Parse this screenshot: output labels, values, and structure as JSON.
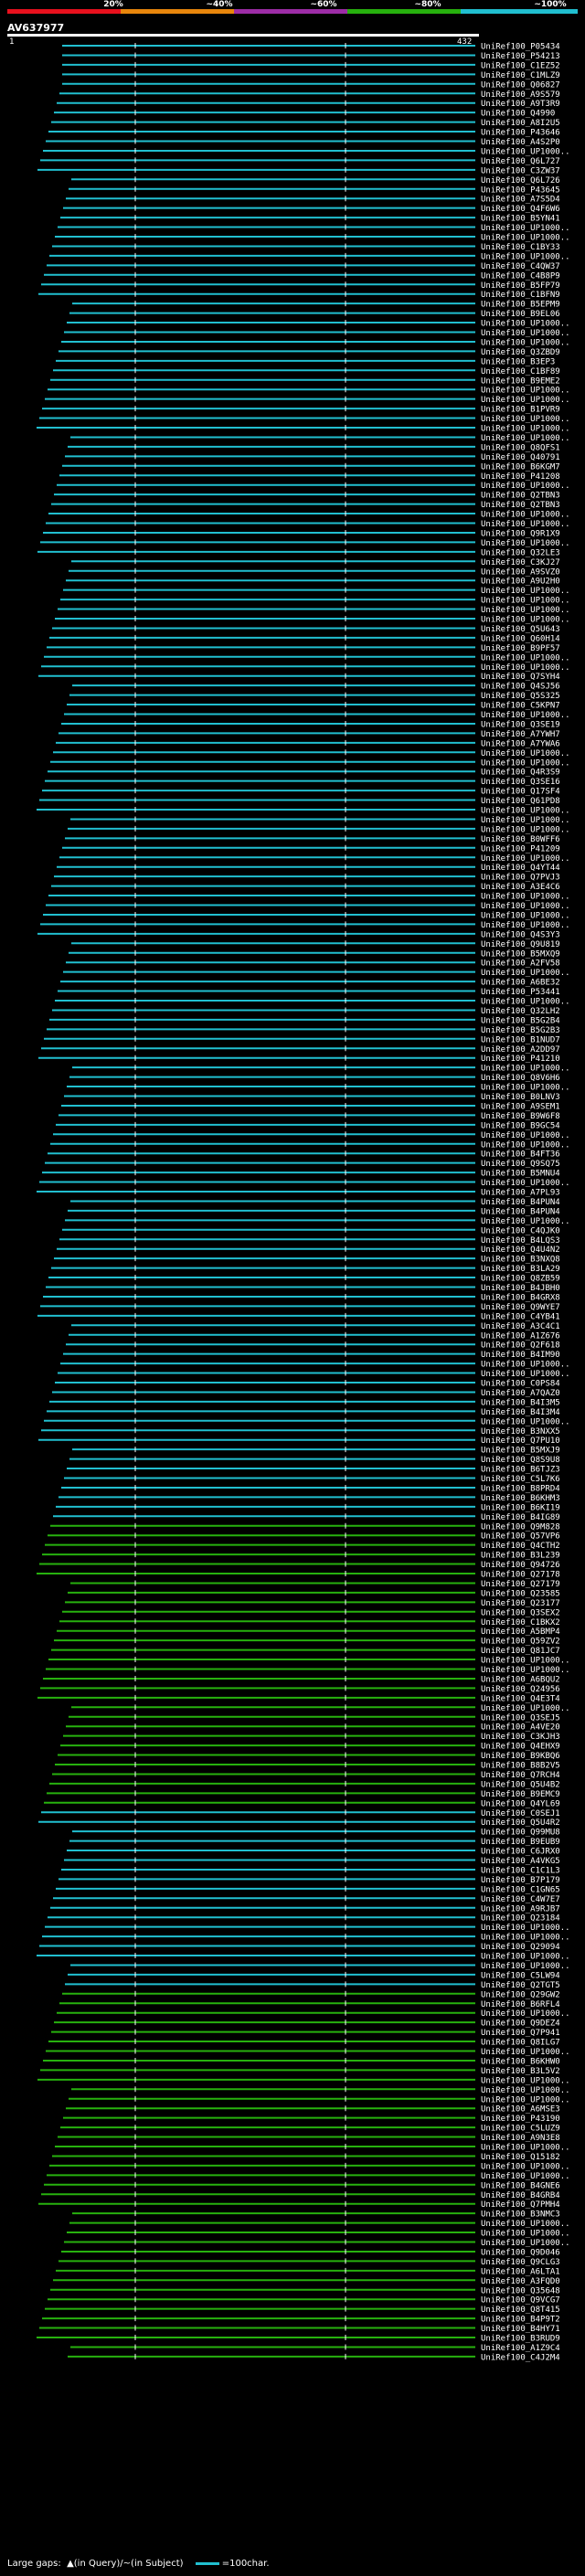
{
  "legend": {
    "labels": [
      "20%",
      "~40%",
      "~60%",
      "~80%",
      "~100%"
    ],
    "colors": [
      "#e8101d",
      "#e8860c",
      "#9d2ca6",
      "#27b10e",
      "#21bfd0"
    ]
  },
  "query": {
    "name": "AV637977",
    "start": "1",
    "end": "432"
  },
  "footer": {
    "prefix": "Large gaps:",
    "gap_query": "(in Query)",
    "sep": "/",
    "gap_subject": "(in Subject)",
    "scale": "=100char."
  },
  "hits": [
    "UniRef100_P05434",
    "UniRef100_P54213",
    "UniRef100_C1EZ52",
    "UniRef100_C1MLZ9",
    "UniRef100_Q06827",
    "UniRef100_A9S579",
    "UniRef100_A9T3R9",
    "UniRef100_Q4990",
    "UniRef100_A8I2U5",
    "UniRef100_P43646",
    "UniRef100_A4S2P0",
    "UniRef100_UP1000..",
    "UniRef100_Q6L727",
    "UniRef100_C3ZW37",
    "UniRef100_Q6L726",
    "UniRef100_P43645",
    "UniRef100_A7S5D4",
    "UniRef100_Q4F6W6",
    "UniRef100_B5YN41",
    "UniRef100_UP1000..",
    "UniRef100_UP1000..",
    "UniRef100_C1BY33",
    "UniRef100_UP1000..",
    "UniRef100_C4QW37",
    "UniRef100_C4B8P9",
    "UniRef100_B5FP79",
    "UniRef100_C1BFN9",
    "UniRef100_B5EPM9",
    "UniRef100_B9EL06",
    "UniRef100_UP1000..",
    "UniRef100_UP1000..",
    "UniRef100_UP1000..",
    "UniRef100_Q3ZBD9",
    "UniRef100_B3EP3",
    "UniRef100_C1BF89",
    "UniRef100_B9EME2",
    "UniRef100_UP1000..",
    "UniRef100_UP1000..",
    "UniRef100_B1PVR9",
    "UniRef100_UP1000..",
    "UniRef100_UP1000..",
    "UniRef100_UP1000..",
    "UniRef100_Q8QFS1",
    "UniRef100_Q40791",
    "UniRef100_B6KGM7",
    "UniRef100_P41208",
    "UniRef100_UP1000..",
    "UniRef100_Q2TBN3",
    "UniRef100_Q2TBN3",
    "UniRef100_UP1000..",
    "UniRef100_UP1000..",
    "UniRef100_Q9R1X9",
    "UniRef100_UP1000..",
    "UniRef100_Q32LE3",
    "UniRef100_C3KJ27",
    "UniRef100_A9SVZ0",
    "UniRef100_A9U2H0",
    "UniRef100_UP1000..",
    "UniRef100_UP1000..",
    "UniRef100_UP1000..",
    "UniRef100_UP1000..",
    "UniRef100_Q5U643",
    "UniRef100_Q60H14",
    "UniRef100_B9PF57",
    "UniRef100_UP1000..",
    "UniRef100_UP1000..",
    "UniRef100_Q7SYH4",
    "UniRef100_Q4SJ56",
    "UniRef100_Q5S325",
    "UniRef100_C5KPN7",
    "UniRef100_UP1000..",
    "UniRef100_Q3SE19",
    "UniRef100_A7YWH7",
    "UniRef100_A7YWA6",
    "UniRef100_UP1000..",
    "UniRef100_UP1000..",
    "UniRef100_Q4R3S9",
    "UniRef100_Q3SE16",
    "UniRef100_Q17SF4",
    "UniRef100_Q61PD8",
    "UniRef100_UP1000..",
    "UniRef100_UP1000..",
    "UniRef100_UP1000..",
    "UniRef100_B0WFF6",
    "UniRef100_P41209",
    "UniRef100_UP1000..",
    "UniRef100_Q4YT44",
    "UniRef100_Q7PVJ3",
    "UniRef100_A3E4C6",
    "UniRef100_UP1000..",
    "UniRef100_UP1000..",
    "UniRef100_UP1000..",
    "UniRef100_UP1000..",
    "UniRef100_Q4S3Y3",
    "UniRef100_Q9U819",
    "UniRef100_B5MXQ9",
    "UniRef100_A2FV58",
    "UniRef100_UP1000..",
    "UniRef100_A6BE32",
    "UniRef100_P53441",
    "UniRef100_UP1000..",
    "UniRef100_Q32LH2",
    "UniRef100_B5G2B4",
    "UniRef100_B5G2B3",
    "UniRef100_B1NUD7",
    "UniRef100_A2DD97",
    "UniRef100_P41210",
    "UniRef100_UP1000..",
    "UniRef100_Q8V6H6",
    "UniRef100_UP1000..",
    "UniRef100_B0LNV3",
    "UniRef100_A9SEM1",
    "UniRef100_B9W6F8",
    "UniRef100_B9GC54",
    "UniRef100_UP1000..",
    "UniRef100_UP1000..",
    "UniRef100_B4FT36",
    "UniRef100_Q9SQ75",
    "UniRef100_B5MNU4",
    "UniRef100_UP1000..",
    "UniRef100_A7PL93",
    "UniRef100_B4PUN4",
    "UniRef100_B4PUN4",
    "UniRef100_UP1000..",
    "UniRef100_C4QJK0",
    "UniRef100_B4LQS3",
    "UniRef100_Q4U4N2",
    "UniRef100_B3NXQ8",
    "UniRef100_B3LA29",
    "UniRef100_Q8ZB59",
    "UniRef100_B4JBH0",
    "UniRef100_B4GRX8",
    "UniRef100_Q9WYE7",
    "UniRef100_C4YB41",
    "UniRef100_A3C4C1",
    "UniRef100_A1Z676",
    "UniRef100_Q2F618",
    "UniRef100_B4IM90",
    "UniRef100_UP1000..",
    "UniRef100_UP1000..",
    "UniRef100_C0PS84",
    "UniRef100_A7QAZ0",
    "UniRef100_B4I3M5",
    "UniRef100_B4I3M4",
    "UniRef100_UP1000..",
    "UniRef100_B3NXX5",
    "UniRef100_Q7PU10",
    "UniRef100_B5MXJ9",
    "UniRef100_Q8S9U8",
    "UniRef100_B6TJZ3",
    "UniRef100_C5L7K6",
    "UniRef100_B8PRD4",
    "UniRef100_B6KHM3",
    "UniRef100_B6KI19",
    "UniRef100_B4IG89",
    "UniRef100_Q9M828",
    "UniRef100_Q57VP6",
    "UniRef100_Q4CTH2",
    "UniRef100_B3L239",
    "UniRef100_Q94726",
    "UniRef100_Q27178",
    "UniRef100_Q27179",
    "UniRef100_Q23585",
    "UniRef100_Q23177",
    "UniRef100_Q3SEX2",
    "UniRef100_C1BKX2",
    "UniRef100_A5BMP4",
    "UniRef100_Q59ZV2",
    "UniRef100_Q81JC7",
    "UniRef100_UP1000..",
    "UniRef100_UP1000..",
    "UniRef100_A6BQU2",
    "UniRef100_Q24956",
    "UniRef100_Q4E3T4",
    "UniRef100_UP1000..",
    "UniRef100_Q3SEJ5",
    "UniRef100_A4VE20",
    "UniRef100_C3KJH3",
    "UniRef100_Q4EHX9",
    "UniRef100_B9KBQ6",
    "UniRef100_B8B2V5",
    "UniRef100_Q7RCH4",
    "UniRef100_Q5U4B2",
    "UniRef100_B9EMC9",
    "UniRef100_Q4YL69",
    "UniRef100_C0SEJ1",
    "UniRef100_Q5U4R2",
    "UniRef100_Q99MU8",
    "UniRef100_B9EUB9",
    "UniRef100_C6JRX0",
    "UniRef100_A4VKG5",
    "UniRef100_C1C1L3",
    "UniRef100_B7P179",
    "UniRef100_C1GN65",
    "UniRef100_C4W7E7",
    "UniRef100_A9RJB7",
    "UniRef100_Q23184",
    "UniRef100_UP1000..",
    "UniRef100_UP1000..",
    "UniRef100_Q29094",
    "UniRef100_UP1000..",
    "UniRef100_UP1000..",
    "UniRef100_C5LW94",
    "UniRef100_Q2TGT5",
    "UniRef100_Q29GW2",
    "UniRef100_B6RFL4",
    "UniRef100_UP1000..",
    "UniRef100_Q9DEZ4",
    "UniRef100_Q7P941",
    "UniRef100_Q8ILG7",
    "UniRef100_UP1000..",
    "UniRef100_B6KHW0",
    "UniRef100_B3L5V2",
    "UniRef100_UP1000..",
    "UniRef100_UP1000..",
    "UniRef100_UP1000..",
    "UniRef100_A6MSE3",
    "UniRef100_P43190",
    "UniRef100_C5LUZ9",
    "UniRef100_A9N3E8",
    "UniRef100_UP1000..",
    "UniRef100_Q15182",
    "UniRef100_UP1000..",
    "UniRef100_UP1000..",
    "UniRef100_B4GNE6",
    "UniRef100_B4GRB4",
    "UniRef100_Q7PMH4",
    "UniRef100_B3NMC3",
    "UniRef100_UP1000..",
    "UniRef100_UP1000..",
    "UniRef100_UP1000..",
    "UniRef100_Q9D046",
    "UniRef100_Q9CLG3",
    "UniRef100_A6LTA1",
    "UniRef100_A3FQD0",
    "UniRef100_Q35648",
    "UniRef100_Q9VCG7",
    "UniRef100_Q8T415",
    "UniRef100_B4P9T2",
    "UniRef100_B4HY71",
    "UniRef100_B3RUD9",
    "UniRef100_A1Z9C4",
    "UniRef100_C4J2M4"
  ]
}
